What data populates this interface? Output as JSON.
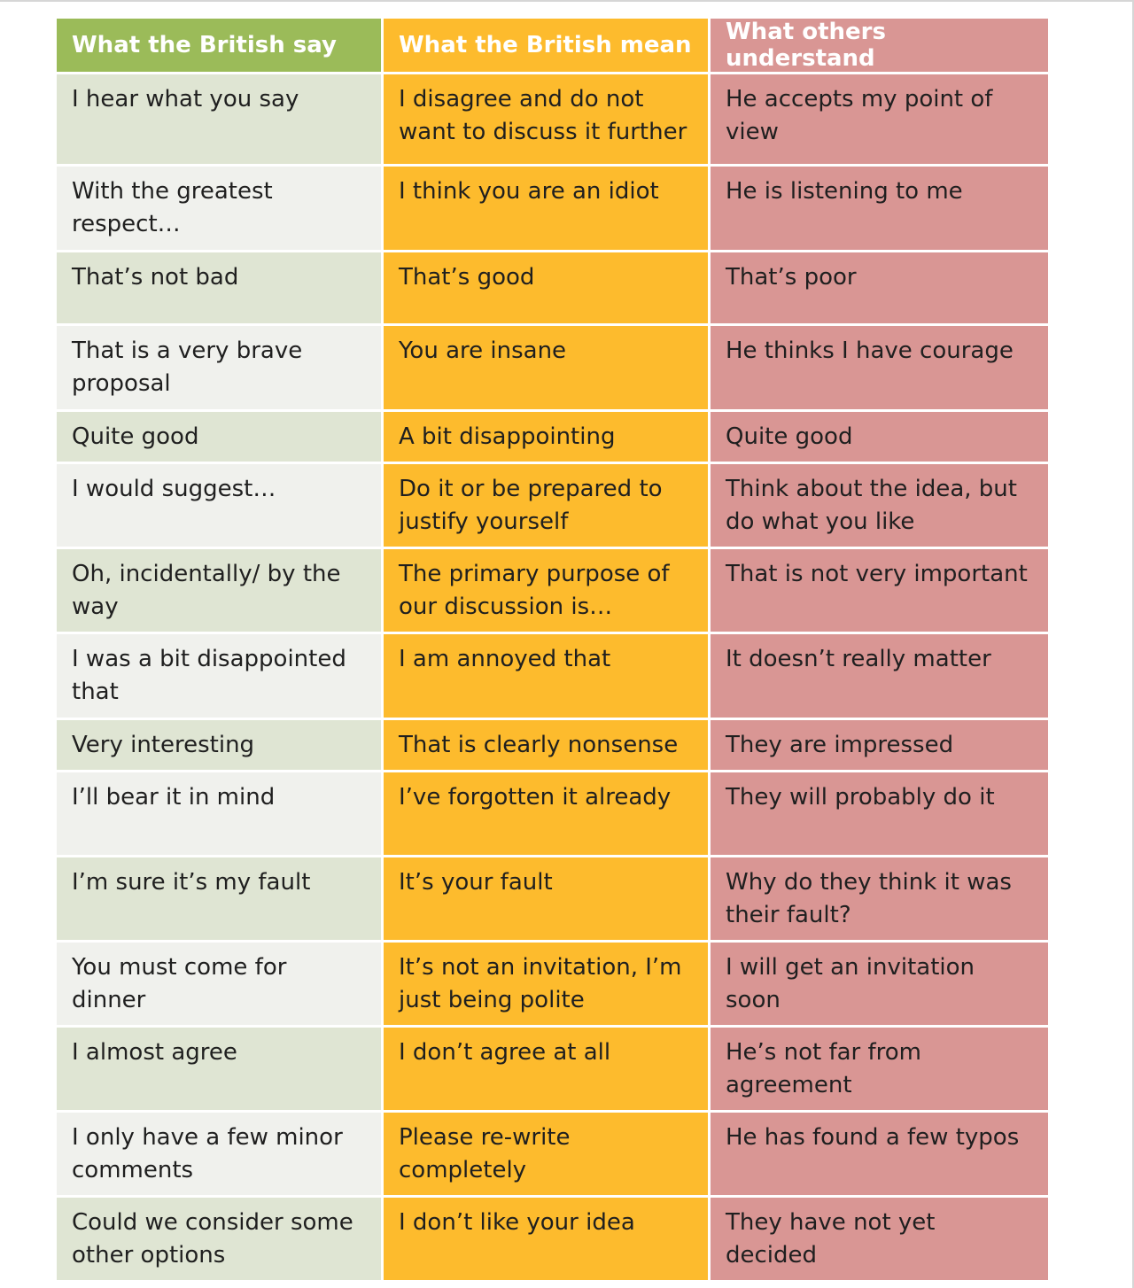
{
  "headers": [
    "What the British say",
    "What the British mean",
    "What others understand"
  ],
  "rows": [
    {
      "say": "I hear what you say",
      "mean": "I disagree and do not want to discuss it further",
      "understand": "He accepts my point of view"
    },
    {
      "say": "With the greatest respect…",
      "mean": "I think you are an idiot",
      "understand": "He is listening to me"
    },
    {
      "say": "That’s not bad",
      "mean": "That’s good",
      "understand": "That’s poor"
    },
    {
      "say": "That is a very brave proposal",
      "mean": "You are insane",
      "understand": "He thinks I have courage"
    },
    {
      "say": "Quite good",
      "mean": "A bit disappointing",
      "understand": "Quite good"
    },
    {
      "say": "I would suggest…",
      "mean": "Do it or be prepared to justify yourself",
      "understand": "Think about the idea, but do what you like"
    },
    {
      "say": "Oh, incidentally/ by the way",
      "mean": "The primary purpose of our discussion is…",
      "understand": "That is not very important"
    },
    {
      "say": "I was a bit disappointed that",
      "mean": "I am annoyed that",
      "understand": "It doesn’t really matter"
    },
    {
      "say": "Very interesting",
      "mean": "That is clearly nonsense",
      "understand": "They are impressed"
    },
    {
      "say": "I’ll bear it in mind",
      "mean": "I’ve forgotten it already",
      "understand": "They will probably do it"
    },
    {
      "say": "I’m sure it’s my fault",
      "mean": "It’s your fault",
      "understand": "Why do they think it was their fault?"
    },
    {
      "say": "You must come for dinner",
      "mean": "It’s not an invitation, I’m just being polite",
      "understand": "I will get an invitation soon"
    },
    {
      "say": "I almost agree",
      "mean": "I don’t agree at all",
      "understand": "He’s not far from agreement"
    },
    {
      "say": "I only have a few minor comments",
      "mean": "Please re-write completely",
      "understand": "He has found a few typos"
    },
    {
      "say": "Could we consider some other options",
      "mean": "I don’t like your idea",
      "understand": "They have not yet decided"
    }
  ]
}
